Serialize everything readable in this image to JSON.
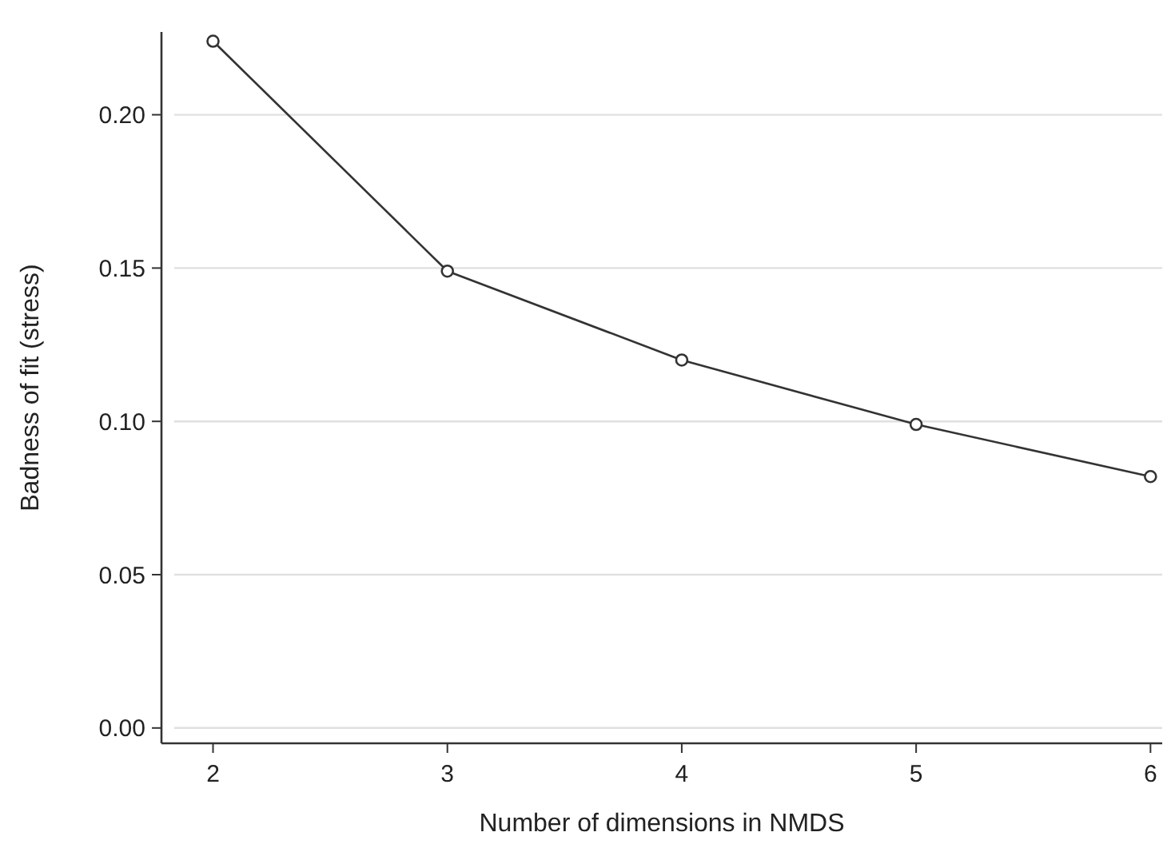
{
  "chart_data": {
    "type": "line",
    "xlabel": "Number of dimensions in NMDS",
    "ylabel": "Badness of fit (stress)",
    "x": [
      2,
      3,
      4,
      5,
      6
    ],
    "series": [
      {
        "color": "#333333",
        "values": [
          0.224,
          0.149,
          0.12,
          0.099,
          0.082
        ]
      }
    ],
    "xlim": [
      1.78,
      6.05
    ],
    "xticks": [
      2,
      3,
      4,
      5,
      6
    ],
    "ylim": [
      -0.005,
      0.227
    ],
    "yticks": [
      {
        "value": 0,
        "label": "0.00"
      },
      {
        "value": 0.05,
        "label": "0.05"
      },
      {
        "value": 0.1,
        "label": "0.10"
      },
      {
        "value": 0.15,
        "label": "0.15"
      },
      {
        "value": 0.2,
        "label": "0.20"
      }
    ],
    "grid": "y",
    "marker": "circle",
    "line_style": "solid"
  }
}
